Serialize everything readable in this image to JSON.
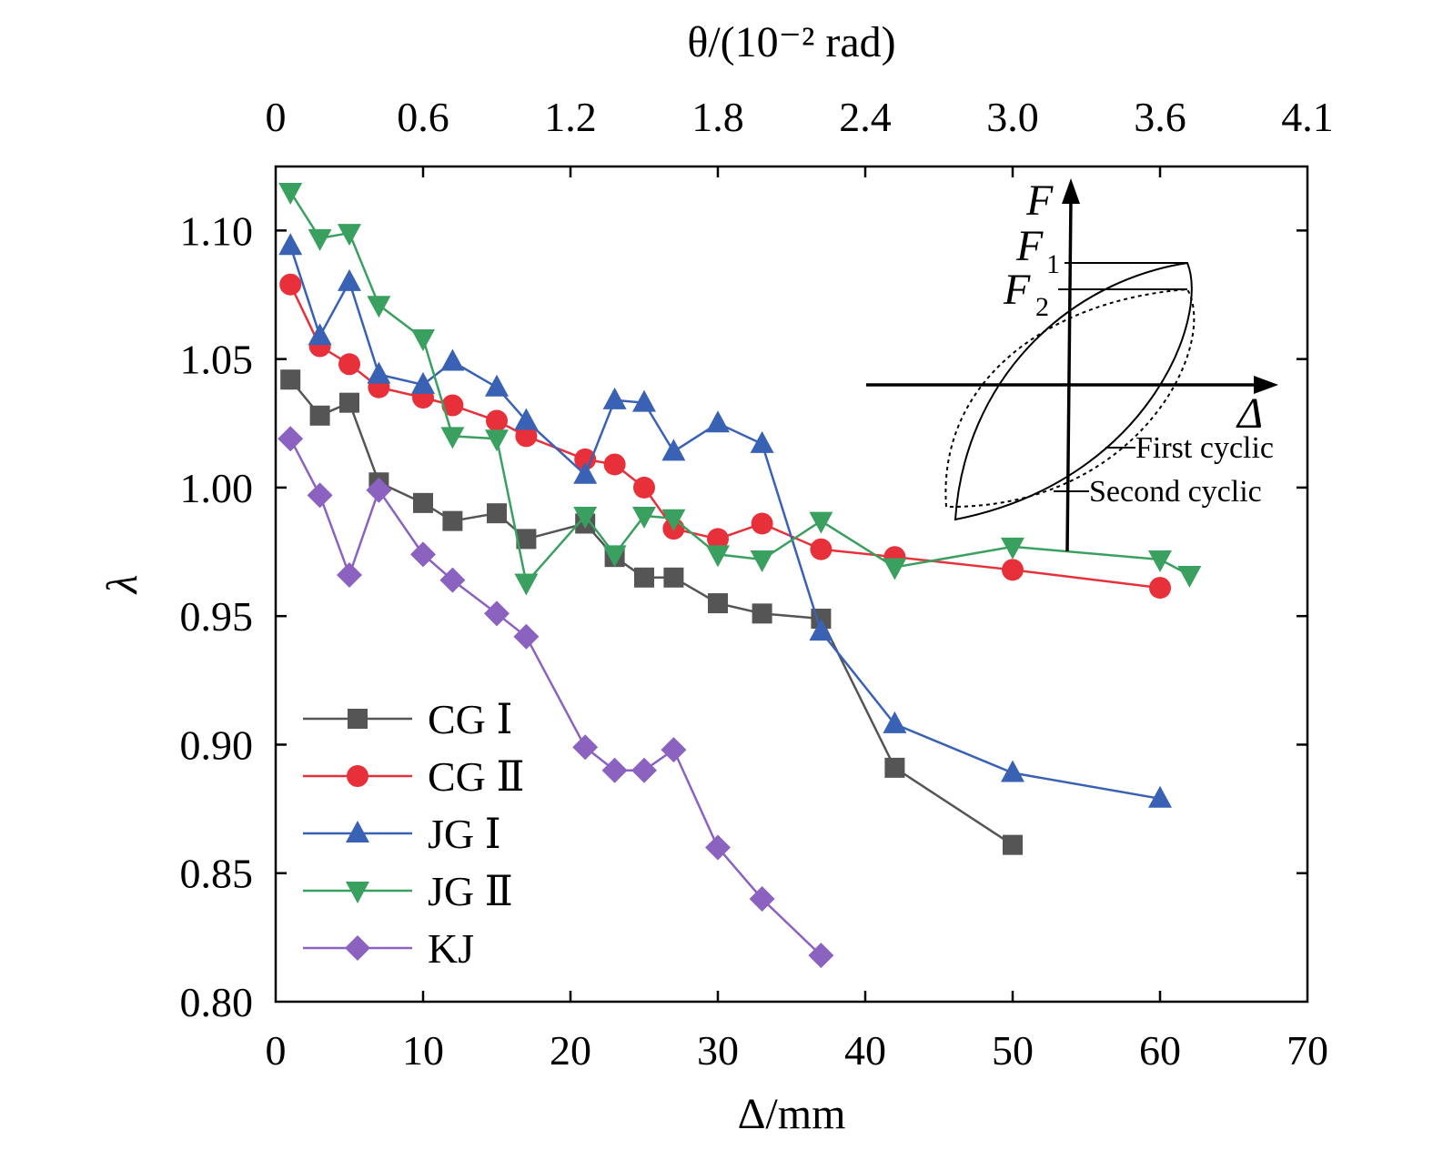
{
  "chart_data": {
    "type": "line",
    "xlabel": "Δ/mm",
    "ylabel": "λ",
    "top_xlabel": "θ/(10⁻² rad)",
    "xlim": [
      0,
      70
    ],
    "ylim": [
      0.8,
      1.12
    ],
    "xticks": [
      "0",
      "10",
      "20",
      "30",
      "40",
      "50",
      "60",
      "70"
    ],
    "yticks": [
      "0.80",
      "0.85",
      "0.90",
      "0.95",
      "1.00",
      "1.05",
      "1.10"
    ],
    "top_ticks": [
      {
        "label": "0",
        "x": 0
      },
      {
        "label": "0.6",
        "x": 10
      },
      {
        "label": "1.2",
        "x": 20
      },
      {
        "label": "1.8",
        "x": 30
      },
      {
        "label": "2.4",
        "x": 40
      },
      {
        "label": "3.0",
        "x": 50
      },
      {
        "label": "3.6",
        "x": 60
      },
      {
        "label": "4.1",
        "x": 70
      }
    ],
    "legend_position": "bottom-left",
    "series": [
      {
        "name": "CG Ⅰ",
        "marker": "square",
        "color": "#555555",
        "x": [
          1,
          3,
          5,
          7,
          10,
          12,
          15,
          17,
          21,
          23,
          25,
          27,
          30,
          33,
          37,
          42,
          50
        ],
        "y": [
          1.042,
          1.028,
          1.033,
          1.002,
          0.994,
          0.987,
          0.99,
          0.98,
          0.986,
          0.973,
          0.965,
          0.965,
          0.955,
          0.951,
          0.949,
          0.891,
          0.861
        ]
      },
      {
        "name": "CG Ⅱ",
        "marker": "circle",
        "color": "#e8303a",
        "x": [
          1,
          3,
          5,
          7,
          10,
          12,
          15,
          17,
          21,
          23,
          25,
          27,
          30,
          33,
          37,
          42,
          50,
          60
        ],
        "y": [
          1.079,
          1.055,
          1.048,
          1.039,
          1.035,
          1.032,
          1.026,
          1.02,
          1.011,
          1.009,
          1.0,
          0.984,
          0.98,
          0.986,
          0.976,
          0.973,
          0.968,
          0.961
        ]
      },
      {
        "name": "JG Ⅰ",
        "marker": "triangle-up",
        "color": "#3a62b4",
        "x": [
          1,
          3,
          5,
          7,
          10,
          12,
          15,
          17,
          21,
          23,
          25,
          27,
          30,
          33,
          37,
          42,
          50,
          60
        ],
        "y": [
          1.094,
          1.059,
          1.08,
          1.044,
          1.04,
          1.049,
          1.039,
          1.026,
          1.005,
          1.034,
          1.033,
          1.014,
          1.025,
          1.017,
          0.944,
          0.908,
          0.889,
          0.879
        ]
      },
      {
        "name": "JG Ⅱ",
        "marker": "triangle-down",
        "color": "#3aa060",
        "x": [
          1,
          3,
          5,
          7,
          10,
          12,
          15,
          17,
          21,
          23,
          25,
          27,
          30,
          33,
          37,
          42,
          50,
          60,
          62
        ],
        "y": [
          1.115,
          1.097,
          1.099,
          1.071,
          1.058,
          1.02,
          1.019,
          0.963,
          0.989,
          0.974,
          0.989,
          0.988,
          0.974,
          0.972,
          0.987,
          0.969,
          0.977,
          0.972,
          0.966
        ]
      },
      {
        "name": "KJ",
        "marker": "diamond",
        "color": "#8b62c0",
        "x": [
          1,
          3,
          5,
          7,
          10,
          12,
          15,
          17,
          21,
          23,
          25,
          27,
          30,
          33,
          37
        ],
        "y": [
          1.019,
          0.997,
          0.966,
          0.999,
          0.974,
          0.964,
          0.951,
          0.942,
          0.899,
          0.89,
          0.89,
          0.898,
          0.86,
          0.84,
          0.818
        ]
      }
    ],
    "inset": {
      "axis_f": "F",
      "axis_d": "Δ",
      "f1": "F",
      "f1_sub": "1",
      "f2": "F",
      "f2_sub": "2",
      "first_label": "First cyclic",
      "second_label": "Second cyclic"
    }
  }
}
